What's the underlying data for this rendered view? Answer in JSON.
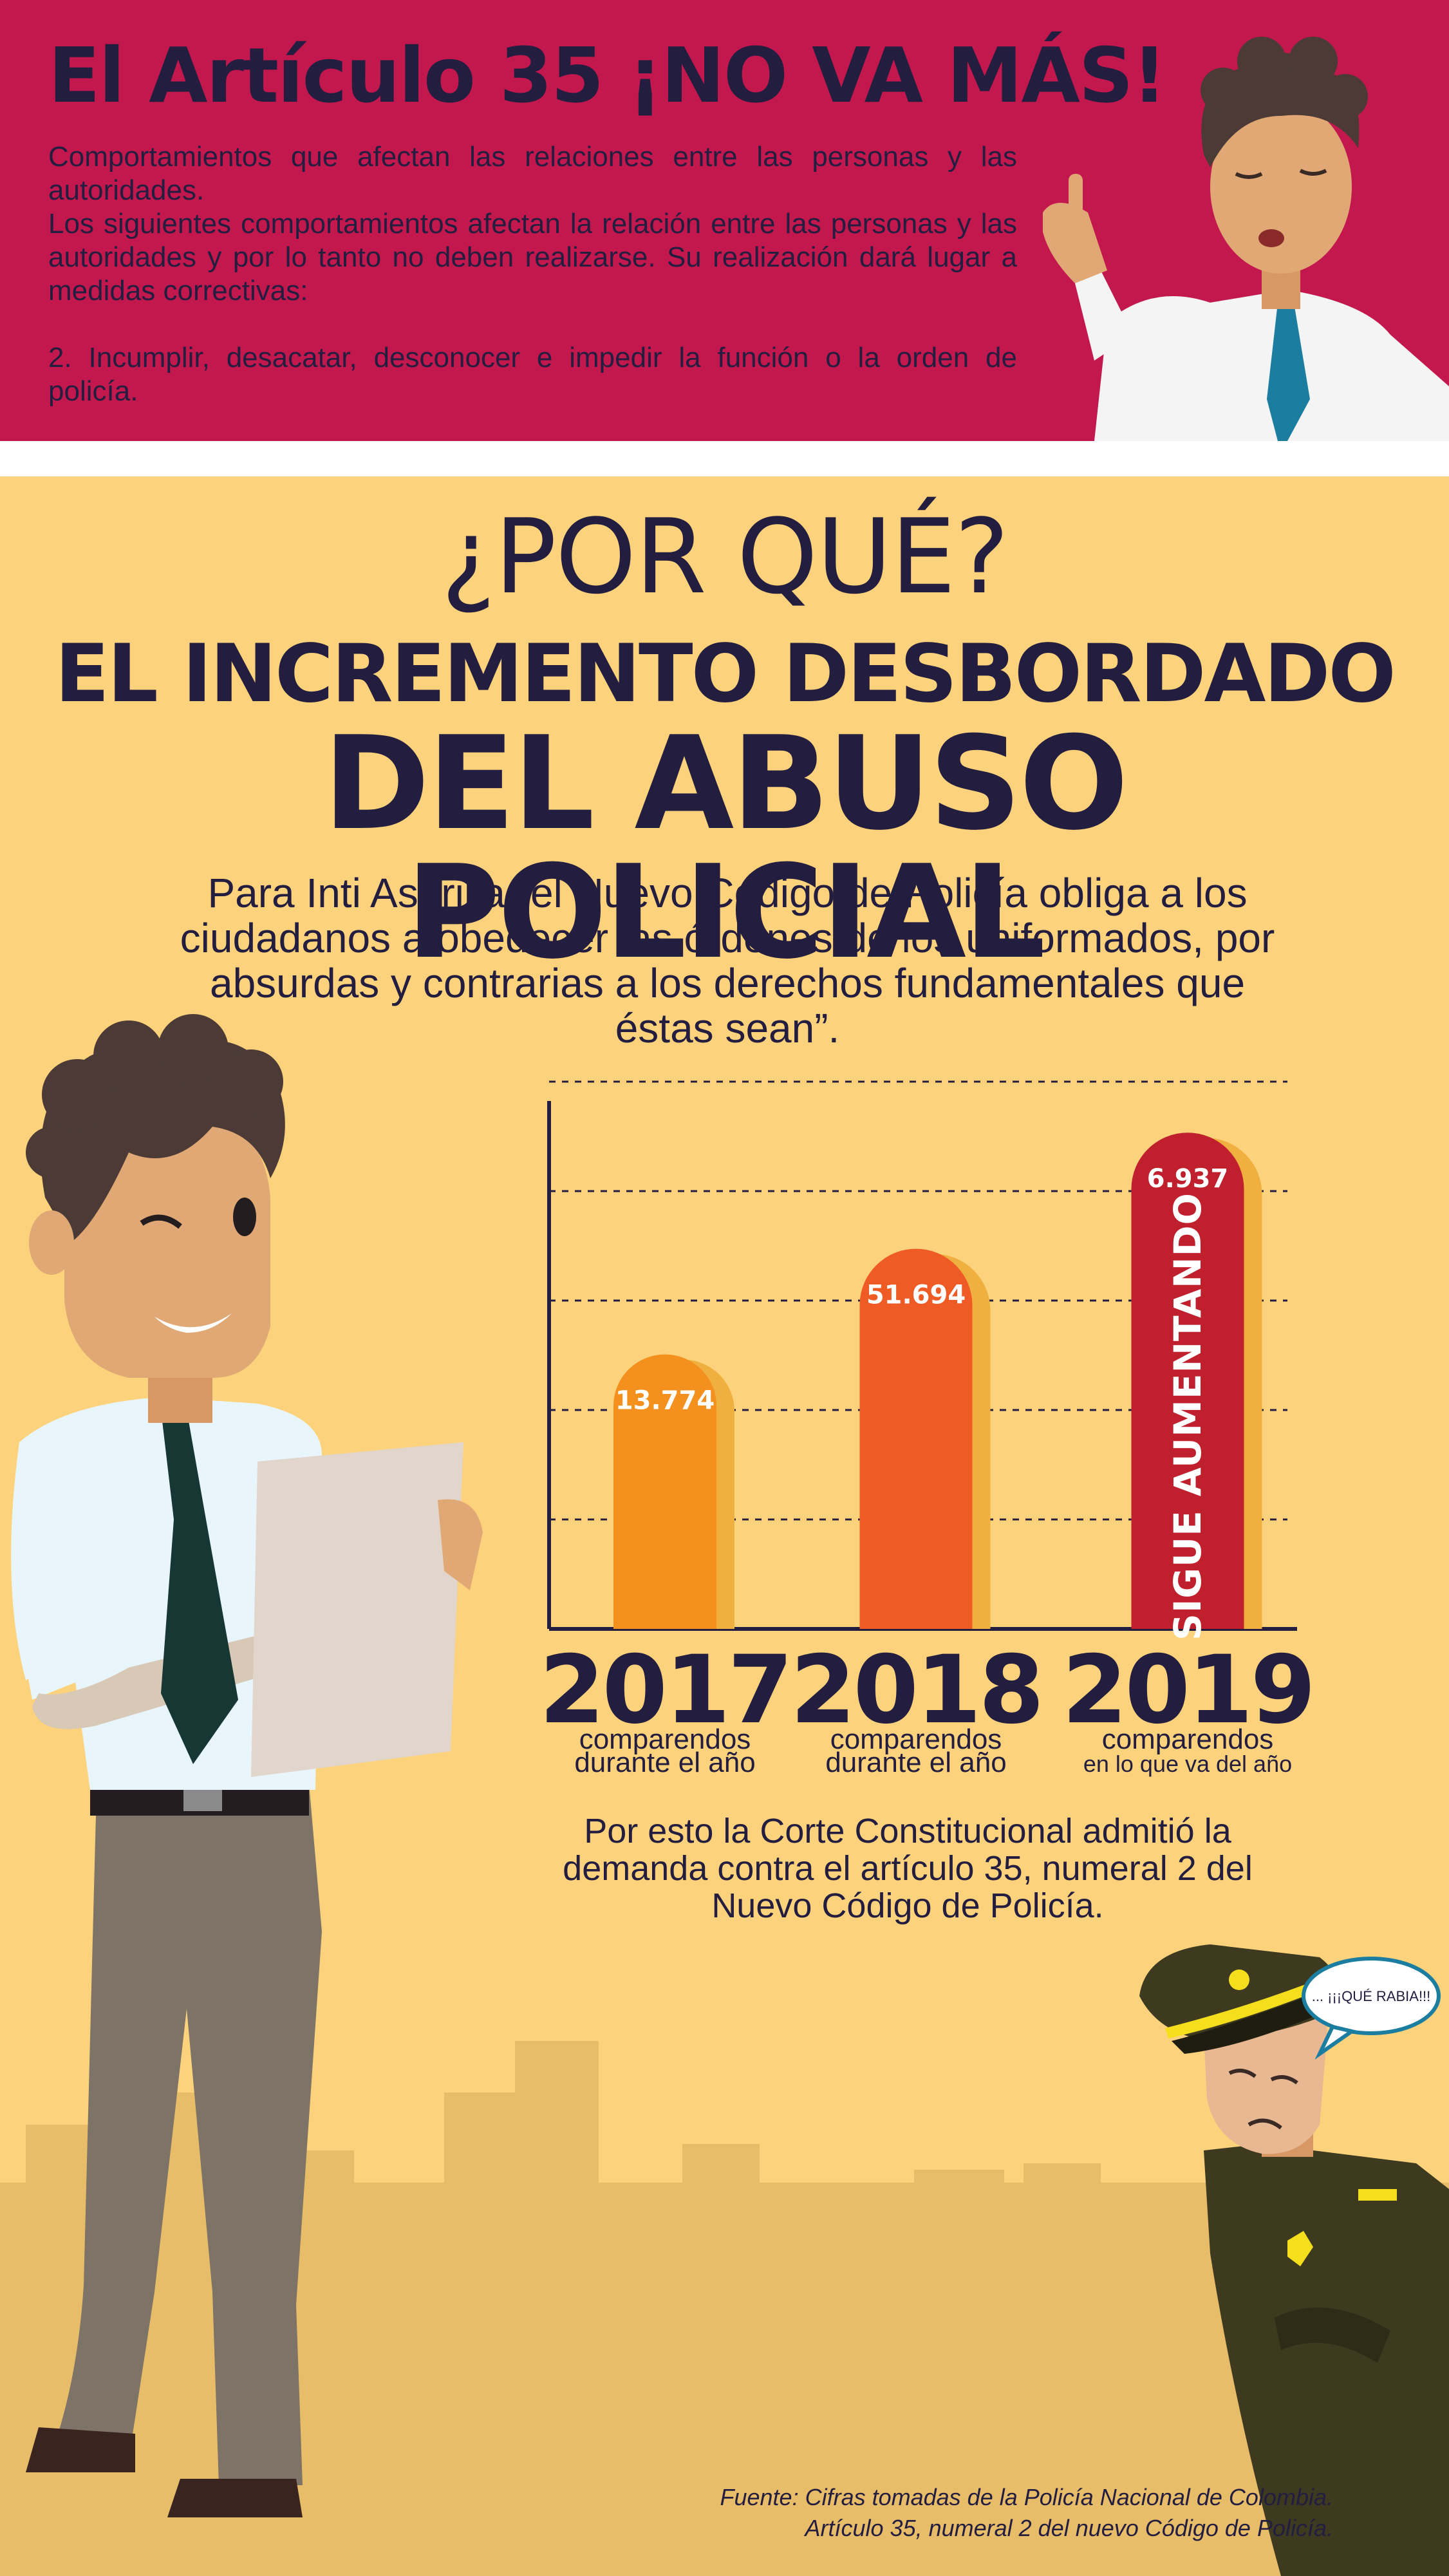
{
  "banner": {
    "title": "El Artículo 35 ¡NO VA MÁS!",
    "paragraph1": "Comportamientos que afectan las relaciones entre las personas y las autoridades.",
    "paragraph2": "Los siguientes comportamientos afectan la relación entre las personas y las autoridades y  por lo tanto no deben realizarse. Su realización dará lugar a medidas correctivas:",
    "paragraph3": "2. Incumplir, desacatar, desconocer e impedir la función o la orden de policía."
  },
  "section": {
    "heading1": "¿POR QUÉ?",
    "heading2": "EL INCREMENTO DESBORDADO",
    "heading3": "DEL ABUSO POLICIAL",
    "quote": "Para Inti Asprilla “el Nuevo Código de Policía obliga a los ciudadanos a obedecer las órdenes de los uniformados, por absurdas y contrarias a los derechos fundamentales que éstas sean”.",
    "closing": "Por esto la Corte Constitucional admitió la demanda contra el artículo 35, numeral 2 del Nuevo Código de Policía.",
    "source_line1": "Fuente: Cifras tomadas de la Policía Nacional de Colombia.",
    "source_line2": "Artículo 35, numeral 2 del nuevo Código de Policía."
  },
  "speech_bubble": "... ¡¡¡QUÉ RABIA!!!",
  "colors": {
    "banner": "#c2184e",
    "background": "#fcd37c",
    "text": "#231d3f",
    "bar_2017": "#f4911e",
    "bar_2018": "#ef5b25",
    "bar_2019": "#c0202e"
  },
  "chart_data": {
    "type": "bar",
    "categories": [
      "2017",
      "2018",
      "2019"
    ],
    "category_subtitles": [
      "comparendos durante el año",
      "comparendos durante el año",
      "comparendos en lo que va del año"
    ],
    "subtitle_line1": [
      "comparendos",
      "comparendos",
      "comparendos"
    ],
    "subtitle_line2": [
      "durante el año",
      "durante el año",
      "en lo que va del año"
    ],
    "value_labels": [
      "13.774",
      "51.694",
      "6.937"
    ],
    "values": [
      13774,
      51694,
      6937
    ],
    "bar_heights_relative": [
      0.52,
      0.72,
      0.94
    ],
    "annotation": "SIGUE AUMENTANDO",
    "grid": "dashed horizontal lines",
    "xlabel": "",
    "ylabel": ""
  }
}
